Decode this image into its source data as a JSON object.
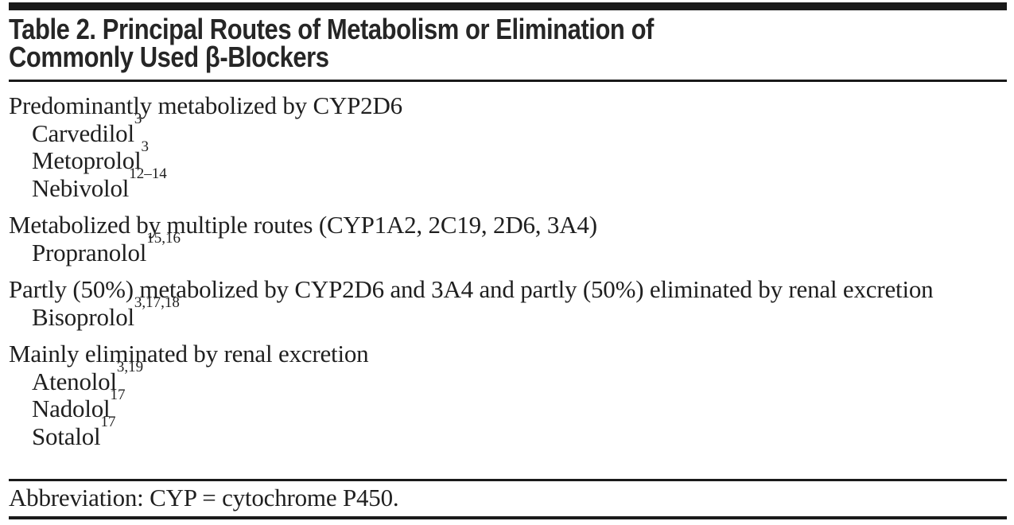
{
  "table": {
    "title_line1": "Table 2. Principal Routes of Metabolism or Elimination of",
    "title_line2": "Commonly Used β-Blockers",
    "sections": [
      {
        "header": "Predominantly metabolized by CYP2D6",
        "items": [
          {
            "name": "Carvedilol",
            "sup": "3"
          },
          {
            "name": "Metoprolol",
            "sup": "3"
          },
          {
            "name": "Nebivolol",
            "sup": "12–14"
          }
        ]
      },
      {
        "header": "Metabolized by multiple routes (CYP1A2, 2C19, 2D6, 3A4)",
        "items": [
          {
            "name": "Propranolol",
            "sup": "15,16"
          }
        ]
      },
      {
        "header": "Partly (50%) metabolized by CYP2D6 and 3A4 and partly (50%) eliminated by renal excretion",
        "items": [
          {
            "name": "Bisoprolol",
            "sup": "3,17,18"
          }
        ]
      },
      {
        "header": "Mainly eliminated by renal excretion",
        "items": [
          {
            "name": "Atenolol",
            "sup": "3,19"
          },
          {
            "name": "Nadolol",
            "sup": "17"
          },
          {
            "name": "Sotalol",
            "sup": "17"
          }
        ]
      }
    ],
    "footnote": "Abbreviation: CYP = cytochrome P450.",
    "colors": {
      "background": "#ffffff",
      "ink": "#1f1f1f",
      "title_ink": "#262626",
      "rule": "#1a1a1a"
    }
  }
}
